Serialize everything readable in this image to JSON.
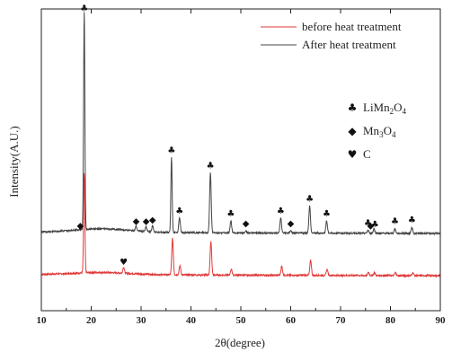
{
  "chart_data": {
    "type": "line",
    "xlabel": "2θ(degree)",
    "ylabel": "Intensity(A.U.)",
    "xlim": [
      10,
      90
    ],
    "xticks": [
      "10",
      "20",
      "30",
      "40",
      "50",
      "60",
      "70",
      "80",
      "90"
    ],
    "series": [
      {
        "name": "before heat treatment",
        "color": "#e03a3a",
        "baseline": 0.12,
        "peaks": [
          {
            "x": 18.6,
            "h": 0.33
          },
          {
            "x": 26.5,
            "h": 0.02
          },
          {
            "x": 36.3,
            "h": 0.12
          },
          {
            "x": 37.8,
            "h": 0.03
          },
          {
            "x": 44.0,
            "h": 0.11
          },
          {
            "x": 48.1,
            "h": 0.02
          },
          {
            "x": 58.2,
            "h": 0.03
          },
          {
            "x": 64.0,
            "h": 0.05
          },
          {
            "x": 67.3,
            "h": 0.02
          },
          {
            "x": 75.6,
            "h": 0.01
          },
          {
            "x": 76.8,
            "h": 0.01
          },
          {
            "x": 81.0,
            "h": 0.01
          },
          {
            "x": 84.5,
            "h": 0.01
          }
        ]
      },
      {
        "name": "After heat treatment",
        "color": "#444444",
        "baseline": 0.26,
        "peaks": [
          {
            "x": 18.6,
            "h": 0.72
          },
          {
            "x": 29.0,
            "h": 0.015
          },
          {
            "x": 31.0,
            "h": 0.015
          },
          {
            "x": 32.3,
            "h": 0.02
          },
          {
            "x": 36.1,
            "h": 0.25
          },
          {
            "x": 37.7,
            "h": 0.05
          },
          {
            "x": 43.9,
            "h": 0.2
          },
          {
            "x": 48.0,
            "h": 0.04
          },
          {
            "x": 51.0,
            "h": 0.008
          },
          {
            "x": 58.0,
            "h": 0.05
          },
          {
            "x": 60.0,
            "h": 0.008
          },
          {
            "x": 63.8,
            "h": 0.09
          },
          {
            "x": 67.2,
            "h": 0.04
          },
          {
            "x": 75.5,
            "h": 0.01
          },
          {
            "x": 76.7,
            "h": 0.015
          },
          {
            "x": 80.9,
            "h": 0.015
          },
          {
            "x": 84.3,
            "h": 0.02
          }
        ]
      }
    ],
    "legend": {
      "placement": "top-right",
      "entries": [
        "before heat treatment",
        "After heat treatment"
      ]
    },
    "phase_legend": [
      {
        "symbol": "♣",
        "icon": "club-icon",
        "label": "LiMn",
        "sub1": "2",
        "mid": "O",
        "sub2": "4"
      },
      {
        "symbol": "◆",
        "icon": "diamond-icon",
        "label": "Mn",
        "sub1": "3",
        "mid": "O",
        "sub2": "4"
      },
      {
        "symbol": "♥",
        "icon": "heart-icon",
        "label": "C",
        "sub1": "",
        "mid": "",
        "sub2": ""
      }
    ],
    "markers": [
      {
        "symbol": "♣",
        "x": 18.6,
        "series": 1,
        "phase": "LiMn2O4"
      },
      {
        "symbol": "♣",
        "x": 36.1,
        "series": 1,
        "phase": "LiMn2O4"
      },
      {
        "symbol": "♣",
        "x": 37.7,
        "series": 1,
        "phase": "LiMn2O4"
      },
      {
        "symbol": "♣",
        "x": 43.9,
        "series": 1,
        "phase": "LiMn2O4"
      },
      {
        "symbol": "♣",
        "x": 48.0,
        "series": 1,
        "phase": "LiMn2O4"
      },
      {
        "symbol": "♣",
        "x": 58.0,
        "series": 1,
        "phase": "LiMn2O4"
      },
      {
        "symbol": "♣",
        "x": 63.8,
        "series": 1,
        "phase": "LiMn2O4"
      },
      {
        "symbol": "♣",
        "x": 67.2,
        "series": 1,
        "phase": "LiMn2O4"
      },
      {
        "symbol": "♣",
        "x": 75.5,
        "series": 1,
        "phase": "LiMn2O4"
      },
      {
        "symbol": "♣",
        "x": 76.9,
        "series": 1,
        "phase": "LiMn2O4"
      },
      {
        "symbol": "♣",
        "x": 80.9,
        "series": 1,
        "phase": "LiMn2O4"
      },
      {
        "symbol": "♣",
        "x": 84.3,
        "series": 1,
        "phase": "LiMn2O4"
      },
      {
        "symbol": "◆",
        "x": 17.8,
        "series": 1,
        "phase": "Mn3O4"
      },
      {
        "symbol": "◆",
        "x": 29.0,
        "series": 1,
        "phase": "Mn3O4"
      },
      {
        "symbol": "◆",
        "x": 31.0,
        "series": 1,
        "phase": "Mn3O4"
      },
      {
        "symbol": "◆",
        "x": 32.3,
        "series": 1,
        "phase": "Mn3O4"
      },
      {
        "symbol": "◆",
        "x": 51.0,
        "series": 1,
        "phase": "Mn3O4"
      },
      {
        "symbol": "◆",
        "x": 60.0,
        "series": 1,
        "phase": "Mn3O4"
      },
      {
        "symbol": "◆",
        "x": 76.0,
        "series": 1,
        "phase": "Mn3O4"
      },
      {
        "symbol": "♥",
        "x": 26.5,
        "series": 0,
        "phase": "C"
      }
    ],
    "grid": false
  }
}
